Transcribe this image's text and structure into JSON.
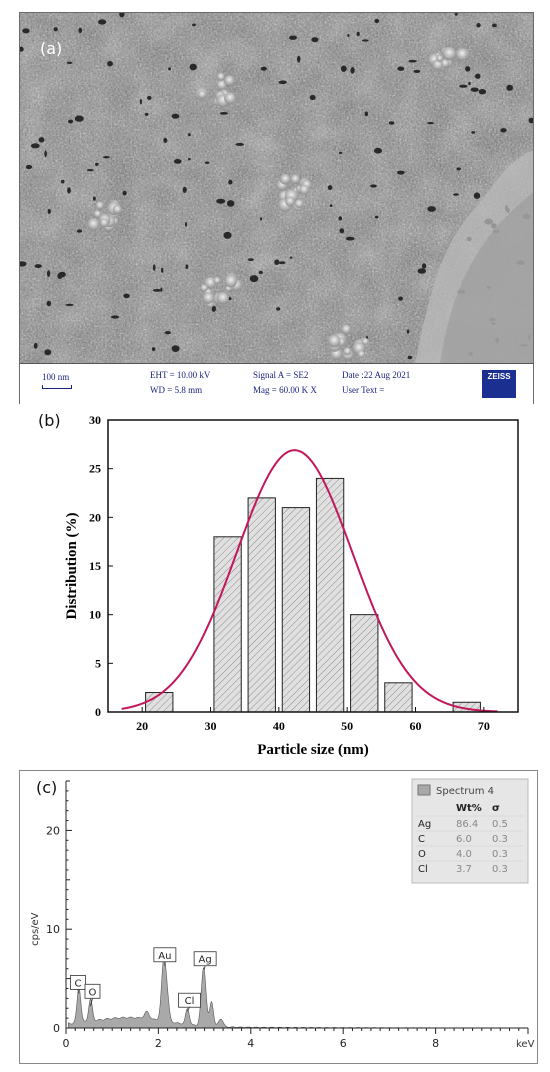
{
  "panel_a": {
    "label": "(a)",
    "info": {
      "scale_bar": "100 nm",
      "eht": "EHT = 10.00 kV",
      "wd": "WD = 5.8 mm",
      "signal": "Signal A = SE2",
      "mag": "Mag = 60.00 K X",
      "date": "Date :22 Aug 2021",
      "user_text": "User Text =",
      "logo": "ZEISS"
    }
  },
  "panel_b": {
    "label": "(b)"
  },
  "panel_c": {
    "label": "(c)"
  },
  "chart_data": [
    {
      "type": "bar",
      "xlabel": "Particle size (nm)",
      "ylabel": "Distribution (%)",
      "xlim": [
        15,
        75
      ],
      "ylim": [
        0,
        30
      ],
      "xticks": [
        "20",
        "30",
        "40",
        "50",
        "60",
        "70"
      ],
      "yticks": [
        "0",
        "5",
        "10",
        "15",
        "20",
        "25",
        "30"
      ],
      "bin_width": 4,
      "bins": [
        {
          "center": 22.5,
          "value": 2
        },
        {
          "center": 32.5,
          "value": 18
        },
        {
          "center": 37.5,
          "value": 22
        },
        {
          "center": 42.5,
          "value": 21
        },
        {
          "center": 47.5,
          "value": 24
        },
        {
          "center": 52.5,
          "value": 10
        },
        {
          "center": 57.5,
          "value": 3
        },
        {
          "center": 67.5,
          "value": 1
        }
      ],
      "fit": {
        "type": "gaussian",
        "mean": 42.3,
        "peak": 26.9,
        "sigma": 8.5,
        "color": "#c2185b"
      },
      "bar_fill": "#e0e0e0",
      "bar_hatch": "diagonal"
    },
    {
      "type": "area",
      "xlabel": "keV",
      "ylabel": "cps/eV",
      "xlim": [
        0,
        10
      ],
      "ylim": [
        0,
        25
      ],
      "xticks": [
        "0",
        "2",
        "4",
        "6",
        "8"
      ],
      "yticks": [
        "0",
        "10",
        "20"
      ],
      "peaks": [
        {
          "label": "C",
          "x": 0.28,
          "y": 3.7
        },
        {
          "label": "O",
          "x": 0.53,
          "y": 2.4
        },
        {
          "label": "Au",
          "x": 2.14,
          "y": 6.5
        },
        {
          "label": "Cl",
          "x": 2.63,
          "y": 1.9
        },
        {
          "label": "Ag",
          "x": 2.99,
          "y": 6.1
        }
      ],
      "legend": {
        "series": "Spectrum 4",
        "headers": [
          "",
          "Wt%",
          "σ"
        ],
        "rows": [
          [
            "Ag",
            "86.4",
            "0.5"
          ],
          [
            "C",
            "6.0",
            "0.3"
          ],
          [
            "O",
            "4.0",
            "0.3"
          ],
          [
            "Cl",
            "3.7",
            "0.3"
          ]
        ],
        "placement": "top-right"
      },
      "fill_color": "#a9a9a9"
    }
  ]
}
